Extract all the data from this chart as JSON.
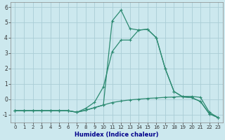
{
  "xlabel": "Humidex (Indice chaleur)",
  "x_values": [
    0,
    1,
    2,
    3,
    4,
    5,
    6,
    7,
    8,
    9,
    10,
    11,
    12,
    13,
    14,
    15,
    16,
    17,
    18,
    19,
    20,
    21,
    22,
    23
  ],
  "line1_y": [
    -0.75,
    -0.75,
    -0.75,
    -0.75,
    -0.75,
    -0.75,
    -0.75,
    -0.85,
    -0.6,
    -0.2,
    0.8,
    3.1,
    3.85,
    3.85,
    4.5,
    4.55,
    4.0,
    2.0,
    0.5,
    0.15,
    0.1,
    -0.15,
    -0.95,
    -1.2
  ],
  "line2_y": [
    -0.75,
    -0.75,
    -0.75,
    -0.75,
    -0.75,
    -0.75,
    -0.75,
    -0.85,
    -0.72,
    -0.55,
    -0.38,
    -0.22,
    -0.12,
    -0.05,
    0.0,
    0.05,
    0.08,
    0.12,
    0.14,
    0.18,
    0.18,
    0.12,
    -0.85,
    -1.2
  ],
  "line3_y": [
    -0.75,
    -0.75,
    -0.75,
    -0.75,
    -0.75,
    -0.75,
    -0.75,
    -0.85,
    -0.72,
    -0.55,
    -0.38,
    5.1,
    5.8,
    4.6,
    4.5,
    4.55,
    4.0,
    2.0,
    0.5,
    0.15,
    0.1,
    -0.15,
    -0.95,
    -1.2
  ],
  "line_color": "#2d8b72",
  "bg_color": "#cce8ee",
  "grid_color": "#aacdd6",
  "ylim": [
    -1.5,
    6.3
  ],
  "xlim": [
    -0.5,
    23.5
  ],
  "yticks": [
    -1,
    0,
    1,
    2,
    3,
    4,
    5,
    6
  ],
  "xticks": [
    0,
    1,
    2,
    3,
    4,
    5,
    6,
    7,
    8,
    9,
    10,
    11,
    12,
    13,
    14,
    15,
    16,
    17,
    18,
    19,
    20,
    21,
    22,
    23
  ]
}
